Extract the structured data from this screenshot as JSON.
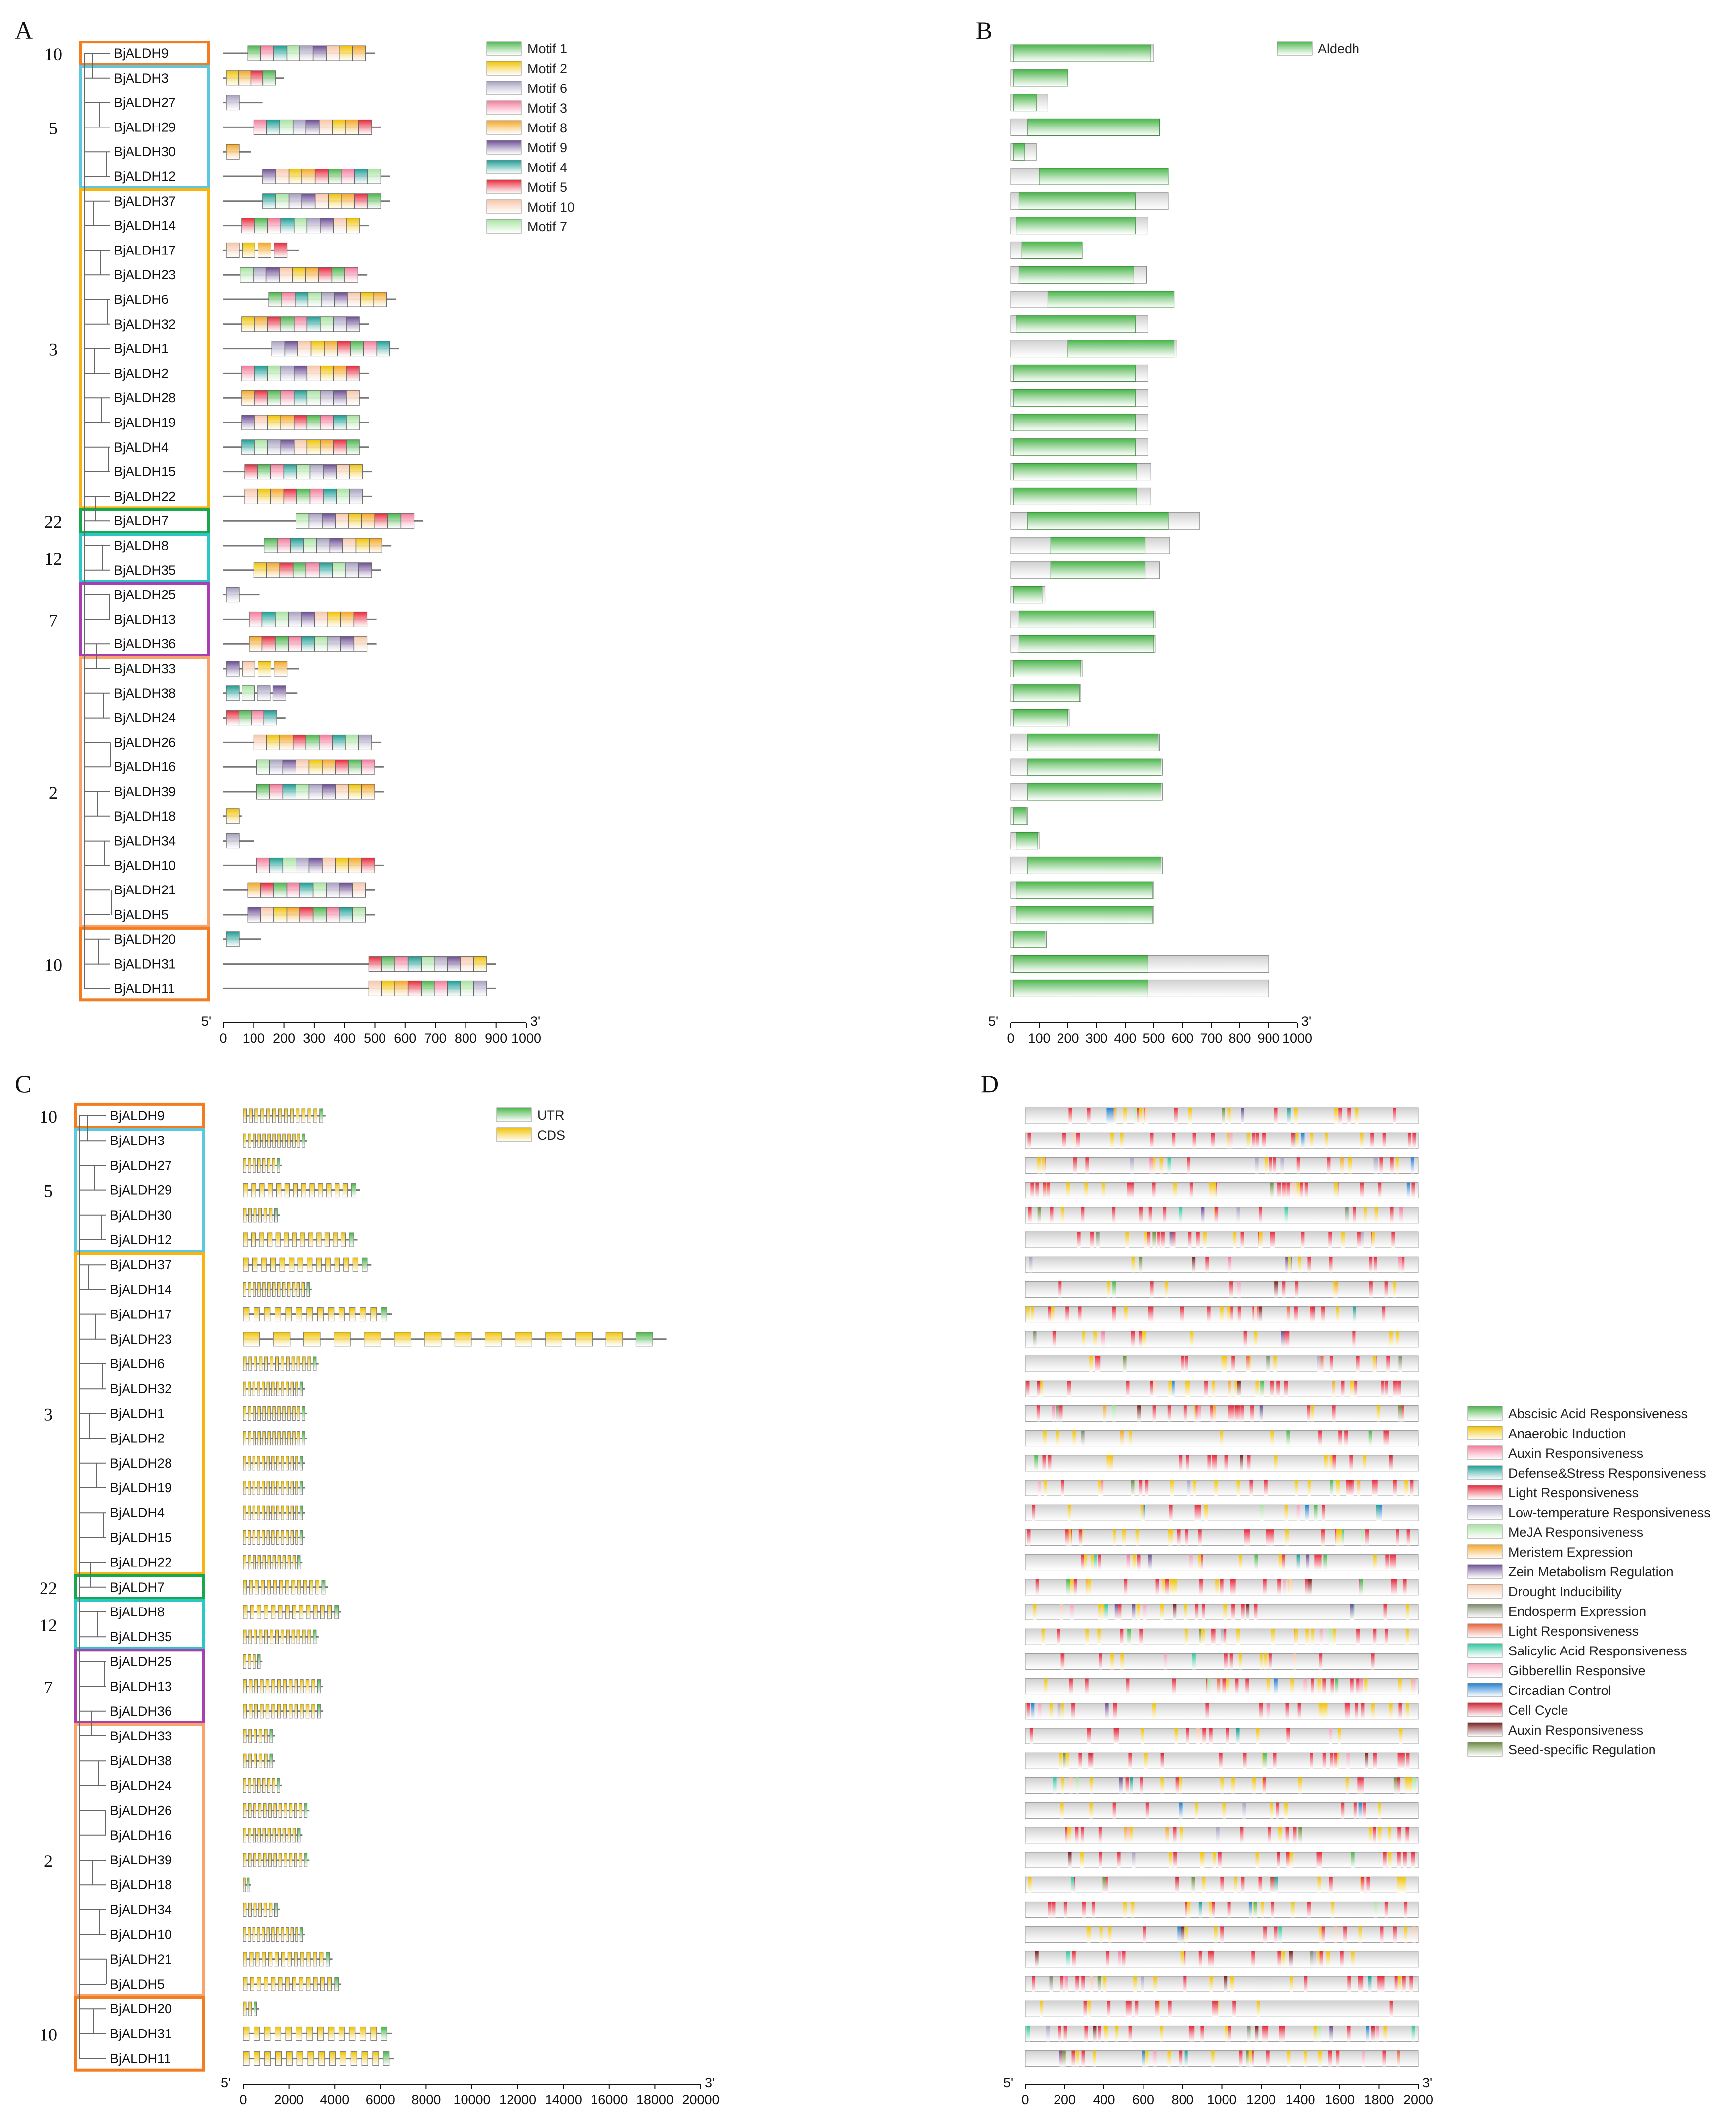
{
  "genes": [
    "BjALDH9",
    "BjALDH3",
    "BjALDH27",
    "BjALDH29",
    "BjALDH30",
    "BjALDH12",
    "BjALDH37",
    "BjALDH14",
    "BjALDH17",
    "BjALDH23",
    "BjALDH6",
    "BjALDH32",
    "BjALDH1",
    "BjALDH2",
    "BjALDH28",
    "BjALDH19",
    "BjALDH4",
    "BjALDH15",
    "BjALDH22",
    "BjALDH7",
    "BjALDH8",
    "BjALDH35",
    "BjALDH25",
    "BjALDH13",
    "BjALDH36",
    "BjALDH33",
    "BjALDH38",
    "BjALDH24",
    "BjALDH26",
    "BjALDH16",
    "BjALDH39",
    "BjALDH18",
    "BjALDH34",
    "BjALDH10",
    "BjALDH21",
    "BjALDH5",
    "BjALDH20",
    "BjALDH31",
    "BjALDH11"
  ],
  "groups": [
    {
      "label": "10",
      "start": 0,
      "end": 0,
      "color": "#f47c20"
    },
    {
      "label": "5",
      "start": 1,
      "end": 5,
      "color": "#5bc8e0"
    },
    {
      "label": "3",
      "start": 6,
      "end": 18,
      "color": "#f5b414"
    },
    {
      "label": "22",
      "start": 19,
      "end": 19,
      "color": "#1aa64b"
    },
    {
      "label": "12",
      "start": 20,
      "end": 21,
      "color": "#2bc6c6"
    },
    {
      "label": "7",
      "start": 22,
      "end": 24,
      "color": "#a83fb0"
    },
    {
      "label": "2",
      "start": 25,
      "end": 35,
      "color": "#f7a36b"
    },
    {
      "label": "10",
      "start": 36,
      "end": 38,
      "color": "#f47c20"
    }
  ],
  "panels": {
    "A": {
      "label": "A",
      "axis_ticks": [
        "0",
        "100",
        "200",
        "300",
        "400",
        "500",
        "600",
        "700",
        "800",
        "900",
        "1000"
      ],
      "end5": "5'",
      "end3": "3'",
      "legend": [
        "Motif 1",
        "Motif 2",
        "Motif 6",
        "Motif 3",
        "Motif 8",
        "Motif 9",
        "Motif 4",
        "Motif 5",
        "Motif 10",
        "Motif 7"
      ],
      "legend_colors": [
        "#49b649",
        "#f2c200",
        "#a8a0c0",
        "#f37a9a",
        "#f5a623",
        "#6a4c93",
        "#1a9e94",
        "#e8283a",
        "#f8c6a8",
        "#a6e3a0"
      ]
    },
    "B": {
      "label": "B",
      "axis_ticks": [
        "0",
        "100",
        "200",
        "300",
        "400",
        "500",
        "600",
        "700",
        "800",
        "900",
        "1000"
      ],
      "end5": "5'",
      "end3": "3'",
      "legend": [
        "Aldedh"
      ],
      "legend_colors": [
        "#49b649"
      ]
    },
    "C": {
      "label": "C",
      "axis_ticks": [
        "0",
        "2000",
        "4000",
        "6000",
        "8000",
        "10000",
        "12000",
        "14000",
        "16000",
        "18000",
        "20000"
      ],
      "end5": "5'",
      "end3": "3'",
      "legend": [
        "UTR",
        "CDS"
      ],
      "legend_colors": [
        "#49b649",
        "#f2c200"
      ]
    },
    "D": {
      "label": "D",
      "axis_ticks": [
        "0",
        "200",
        "400",
        "600",
        "800",
        "1000",
        "1200",
        "1400",
        "1600",
        "1800",
        "2000"
      ],
      "end5": "5'",
      "end3": "3'",
      "legend": [
        "Abscisic Acid Responsiveness",
        "Anaerobic Induction",
        "Auxin Responsiveness",
        "Defense&Stress Responsiveness",
        "Light Responsiveness",
        "Low-temperature Responsiveness",
        "MeJA Responsiveness",
        "Meristem Expression",
        "Zein Metabolism Regulation",
        "Drought Inducibility",
        "Endosperm Expression",
        "Light Responsiveness",
        "Salicylic Acid Responsiveness",
        "Gibberellin Responsive",
        "Circadian Control",
        "Cell Cycle",
        "Auxin Responsiveness",
        "Seed-specific Regulation"
      ],
      "legend_colors": [
        "#49b649",
        "#f2c200",
        "#f37a9a",
        "#1a9e94",
        "#e8283a",
        "#a8a0c0",
        "#a6e3a0",
        "#f5a623",
        "#6a4c93",
        "#f8c6a8",
        "#7a8a6a",
        "#e8603a",
        "#2ec7a0",
        "#f4a0b8",
        "#1f7fd0",
        "#d41e2e",
        "#7a1e1e",
        "#6a8a3a"
      ]
    },
    "protein_lengths": [
      500,
      200,
      130,
      520,
      90,
      550,
      550,
      480,
      250,
      475,
      570,
      480,
      580,
      480,
      480,
      480,
      480,
      490,
      490,
      660,
      555,
      520,
      120,
      505,
      505,
      250,
      245,
      205,
      520,
      530,
      530,
      60,
      100,
      530,
      500,
      500,
      125,
      900,
      900
    ],
    "aldedh_domains": [
      [
        10,
        490
      ],
      [
        10,
        200
      ],
      [
        10,
        90
      ],
      [
        60,
        520
      ],
      [
        10,
        50
      ],
      [
        100,
        550
      ],
      [
        30,
        435
      ],
      [
        20,
        435
      ],
      [
        40,
        250
      ],
      [
        30,
        430
      ],
      [
        130,
        570
      ],
      [
        20,
        435
      ],
      [
        200,
        570
      ],
      [
        10,
        435
      ],
      [
        10,
        435
      ],
      [
        10,
        435
      ],
      [
        10,
        435
      ],
      [
        10,
        440
      ],
      [
        10,
        440
      ],
      [
        60,
        550
      ],
      [
        140,
        470
      ],
      [
        140,
        470
      ],
      [
        10,
        110
      ],
      [
        30,
        500
      ],
      [
        30,
        500
      ],
      [
        10,
        245
      ],
      [
        10,
        240
      ],
      [
        10,
        200
      ],
      [
        60,
        515
      ],
      [
        60,
        525
      ],
      [
        60,
        525
      ],
      [
        10,
        55
      ],
      [
        20,
        95
      ],
      [
        60,
        525
      ],
      [
        20,
        495
      ],
      [
        20,
        495
      ],
      [
        10,
        120
      ],
      [
        10,
        480
      ],
      [
        10,
        480
      ]
    ],
    "gene_lengths": [
      3600,
      2800,
      1700,
      5100,
      1600,
      5000,
      5600,
      3000,
      6500,
      18500,
      3300,
      2700,
      2800,
      2800,
      2700,
      2700,
      2700,
      2700,
      2600,
      3700,
      4300,
      3300,
      850,
      3500,
      3500,
      1400,
      1400,
      1700,
      2900,
      2600,
      2900,
      330,
      1600,
      2700,
      3900,
      4300,
      700,
      6500,
      6600
    ]
  }
}
